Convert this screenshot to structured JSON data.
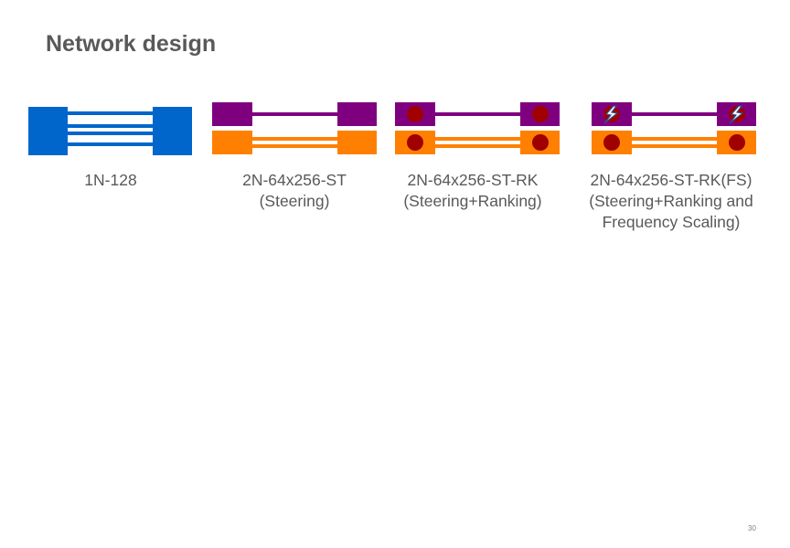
{
  "slide": {
    "title": "Network design",
    "page_number": "30"
  },
  "colors": {
    "single_network": "#0066cc",
    "network_a": "#7f007f",
    "network_b": "#ff8000",
    "ranking_dot": "#a00000",
    "text": "#595959"
  },
  "designs": [
    {
      "id": "1n-128",
      "name": "1N-128",
      "subtitle": "",
      "subtitle2": "",
      "networks": 1,
      "ranking": false,
      "frequency_scaling": false
    },
    {
      "id": "2n-st",
      "name": "2N-64x256-ST",
      "subtitle": "(Steering)",
      "subtitle2": "",
      "networks": 2,
      "ranking": false,
      "frequency_scaling": false
    },
    {
      "id": "2n-st-rk",
      "name": "2N-64x256-ST-RK",
      "subtitle": "(Steering+Ranking)",
      "subtitle2": "",
      "networks": 2,
      "ranking": true,
      "frequency_scaling": false
    },
    {
      "id": "2n-st-rk-fs",
      "name": "2N-64x256-ST-RK(FS)",
      "subtitle": "(Steering+Ranking and",
      "subtitle2": "Frequency Scaling)",
      "networks": 2,
      "ranking": true,
      "frequency_scaling": true
    }
  ]
}
